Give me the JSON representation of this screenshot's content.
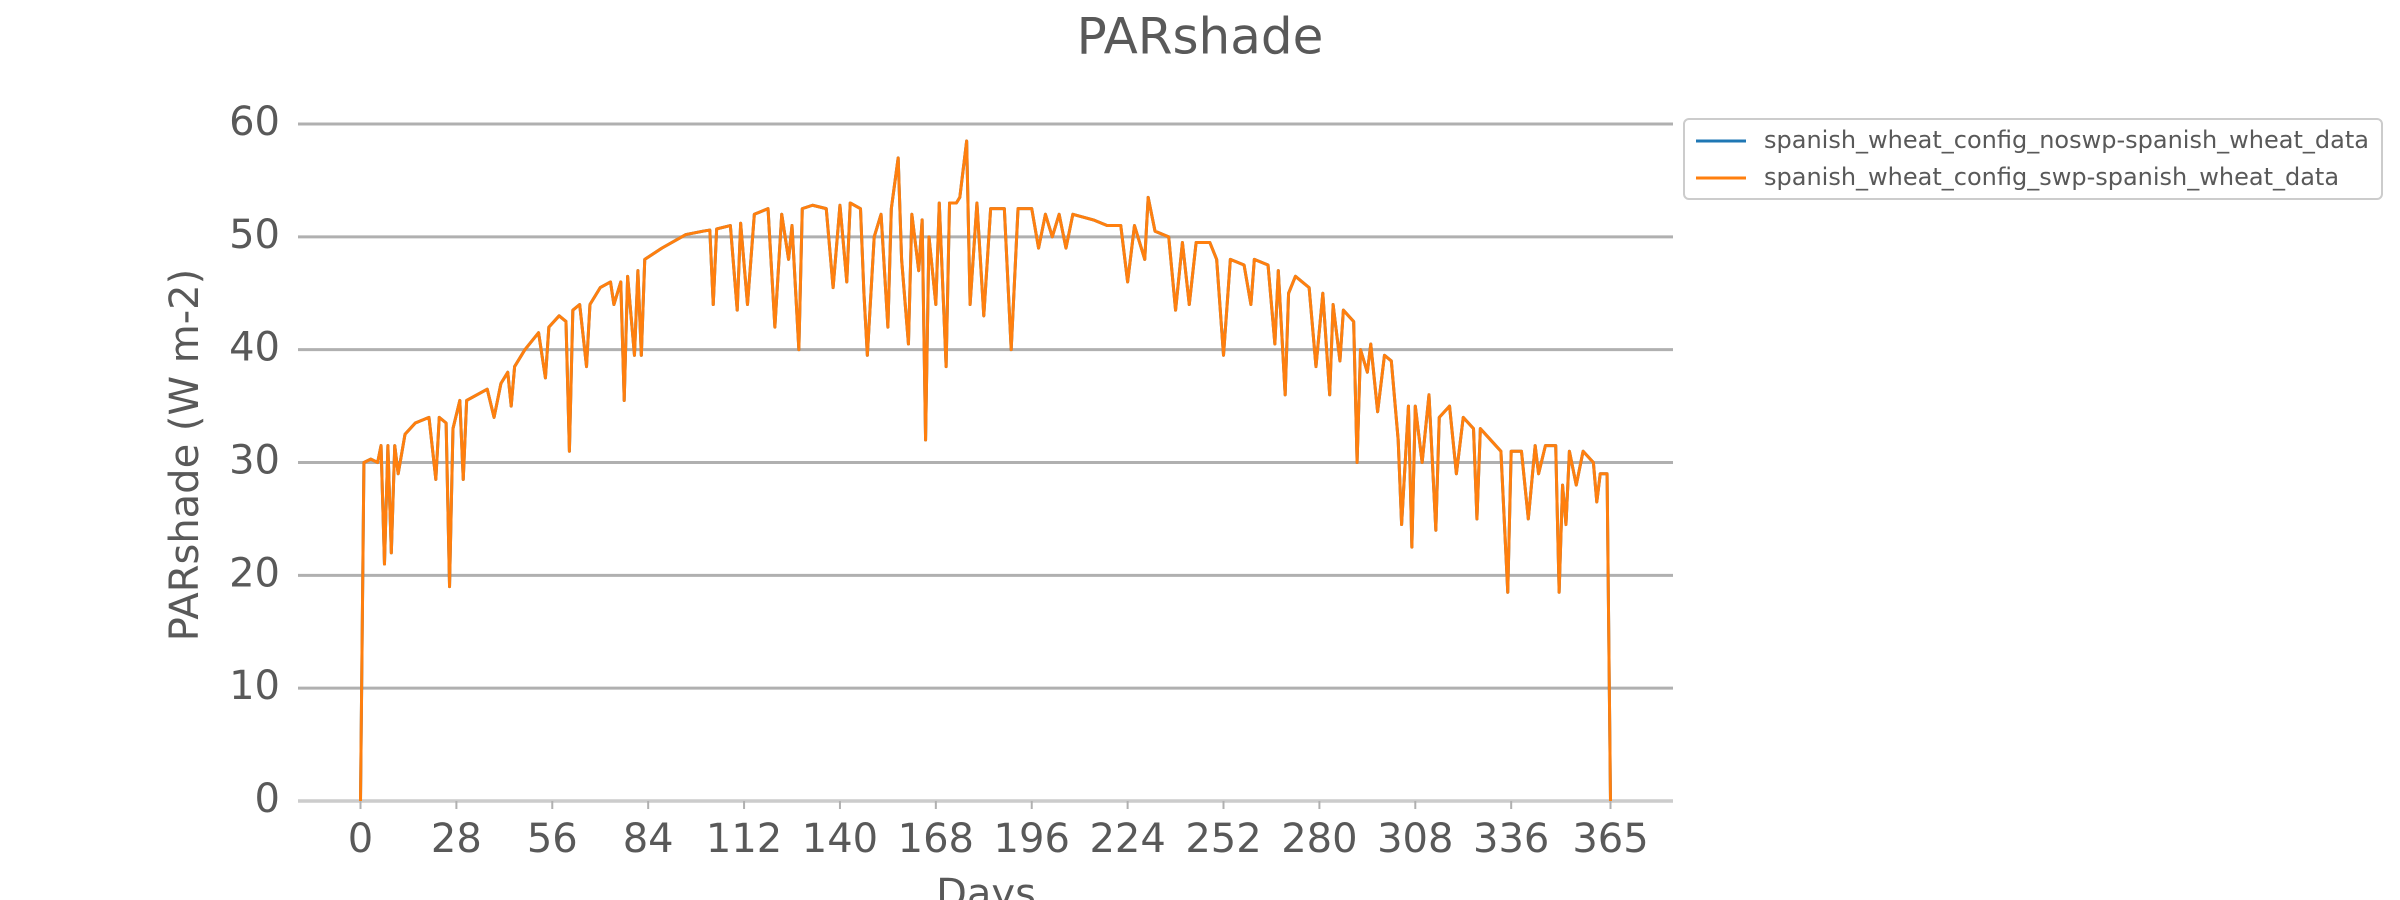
{
  "chart_data": {
    "type": "line",
    "title": "PARshade",
    "xlabel": "Days",
    "ylabel": "PARshade (W m-2)",
    "x": [
      0,
      1,
      3,
      5,
      6,
      7,
      8,
      9,
      10,
      11,
      13,
      16,
      20,
      22,
      23,
      25,
      26,
      27,
      29,
      30,
      31,
      34,
      37,
      39,
      41,
      43,
      44,
      45,
      48,
      52,
      54,
      55,
      58,
      60,
      61,
      62,
      64,
      66,
      67,
      70,
      73,
      74,
      76,
      77,
      78,
      80,
      81,
      82,
      83,
      88,
      95,
      100,
      102,
      103,
      104,
      108,
      110,
      111,
      113,
      115,
      119,
      121,
      123,
      125,
      126,
      128,
      129,
      132,
      136,
      138,
      140,
      142,
      143,
      146,
      147,
      148,
      150,
      152,
      154,
      155,
      157,
      158,
      160,
      161,
      163,
      164,
      165,
      166,
      168,
      169,
      171,
      172,
      174,
      175,
      177,
      178,
      180,
      182,
      184,
      188,
      190,
      192,
      196,
      198,
      200,
      202,
      204,
      206,
      208,
      214,
      218,
      222,
      224,
      226,
      229,
      230,
      232,
      236,
      238,
      240,
      242,
      244,
      248,
      250,
      252,
      254,
      258,
      260,
      261,
      265,
      267,
      268,
      270,
      271,
      273,
      277,
      279,
      281,
      283,
      284,
      286,
      287,
      290,
      291,
      292,
      294,
      295,
      297,
      299,
      301,
      303,
      304,
      306,
      307,
      308,
      310,
      312,
      314,
      315,
      318,
      320,
      322,
      325,
      326,
      327,
      330,
      333,
      335,
      336,
      339,
      341,
      343,
      344,
      346,
      349,
      350,
      351,
      352,
      353,
      355,
      357,
      360,
      361,
      362,
      364,
      365
    ],
    "series": [
      {
        "name": "spanish_wheat_config_noswp-spanish_wheat_data",
        "color": "#1f77b4",
        "values": [
          0,
          30,
          30.3,
          30,
          31.5,
          21,
          31.5,
          22,
          31.5,
          29,
          32.5,
          33.5,
          34,
          28.5,
          34,
          33.5,
          19,
          33,
          35.5,
          28.5,
          35.5,
          36,
          36.5,
          34,
          37,
          38,
          35,
          38.5,
          40,
          41.5,
          37.5,
          42,
          43,
          42.5,
          31,
          43.5,
          44,
          38.5,
          44,
          45.5,
          46,
          44,
          46,
          35.5,
          46.5,
          39.5,
          47,
          39.5,
          48,
          49,
          50.2,
          50.5,
          50.6,
          44,
          50.7,
          51,
          43.5,
          51.2,
          44,
          52,
          52.5,
          42,
          52,
          48,
          51,
          40,
          52.5,
          52.8,
          52.5,
          45.5,
          52.8,
          46,
          53,
          52.5,
          45,
          39.5,
          50,
          52,
          42,
          52.5,
          57,
          48,
          40.5,
          52,
          47,
          51.5,
          32,
          50,
          44,
          53,
          38.5,
          53,
          53,
          53.5,
          58.5,
          44,
          53,
          43,
          52.5,
          52.5,
          40,
          52.5,
          52.5,
          49,
          52,
          50,
          52,
          49,
          52,
          51.5,
          51,
          51,
          46,
          51,
          48,
          53.5,
          50.5,
          50,
          43.5,
          49.5,
          44,
          49.5,
          49.5,
          48,
          39.5,
          48,
          47.5,
          44,
          48,
          47.5,
          40.5,
          47,
          36,
          45,
          46.5,
          45.5,
          38.5,
          45,
          36,
          44,
          39,
          43.5,
          42.5,
          30,
          40,
          38,
          40.5,
          34.5,
          39.5,
          39,
          32,
          24.5,
          35,
          22.5,
          35,
          30,
          36,
          24,
          34,
          35,
          29,
          34,
          33,
          25,
          33,
          32,
          31,
          18.5,
          31,
          31,
          25,
          31.5,
          29,
          31.5,
          31.5,
          18.5,
          28,
          24.5,
          31,
          28,
          31,
          30,
          26.5,
          29,
          29,
          0
        ]
      },
      {
        "name": "spanish_wheat_config_swp-spanish_wheat_data",
        "color": "#ff7f0e",
        "values": [
          0,
          30,
          30.3,
          30,
          31.5,
          21,
          31.5,
          22,
          31.5,
          29,
          32.5,
          33.5,
          34,
          28.5,
          34,
          33.5,
          19,
          33,
          35.5,
          28.5,
          35.5,
          36,
          36.5,
          34,
          37,
          38,
          35,
          38.5,
          40,
          41.5,
          37.5,
          42,
          43,
          42.5,
          31,
          43.5,
          44,
          38.5,
          44,
          45.5,
          46,
          44,
          46,
          35.5,
          46.5,
          39.5,
          47,
          39.5,
          48,
          49,
          50.2,
          50.5,
          50.6,
          44,
          50.7,
          51,
          43.5,
          51.2,
          44,
          52,
          52.5,
          42,
          52,
          48,
          51,
          40,
          52.5,
          52.8,
          52.5,
          45.5,
          52.8,
          46,
          53,
          52.5,
          45,
          39.5,
          50,
          52,
          42,
          52.5,
          57,
          48,
          40.5,
          52,
          47,
          51.5,
          32,
          50,
          44,
          53,
          38.5,
          53,
          53,
          53.5,
          58.5,
          44,
          53,
          43,
          52.5,
          52.5,
          40,
          52.5,
          52.5,
          49,
          52,
          50,
          52,
          49,
          52,
          51.5,
          51,
          51,
          46,
          51,
          48,
          53.5,
          50.5,
          50,
          43.5,
          49.5,
          44,
          49.5,
          49.5,
          48,
          39.5,
          48,
          47.5,
          44,
          48,
          47.5,
          40.5,
          47,
          36,
          45,
          46.5,
          45.5,
          38.5,
          45,
          36,
          44,
          39,
          43.5,
          42.5,
          30,
          40,
          38,
          40.5,
          34.5,
          39.5,
          39,
          32,
          24.5,
          35,
          22.5,
          35,
          30,
          36,
          24,
          34,
          35,
          29,
          34,
          33,
          25,
          33,
          32,
          31,
          18.5,
          31,
          31,
          25,
          31.5,
          29,
          31.5,
          31.5,
          18.5,
          28,
          24.5,
          31,
          28,
          31,
          30,
          26.5,
          29,
          29,
          0
        ]
      }
    ],
    "xlim": [
      -18.25,
      383.25
    ],
    "xticks": [
      0,
      28,
      56,
      84,
      112,
      140,
      168,
      196,
      224,
      252,
      280,
      308,
      336,
      365
    ],
    "ylim": [
      0,
      60
    ],
    "yticks": [
      0,
      10,
      20,
      30,
      40,
      50,
      60
    ],
    "grid": true,
    "legend": "outside upper right"
  }
}
